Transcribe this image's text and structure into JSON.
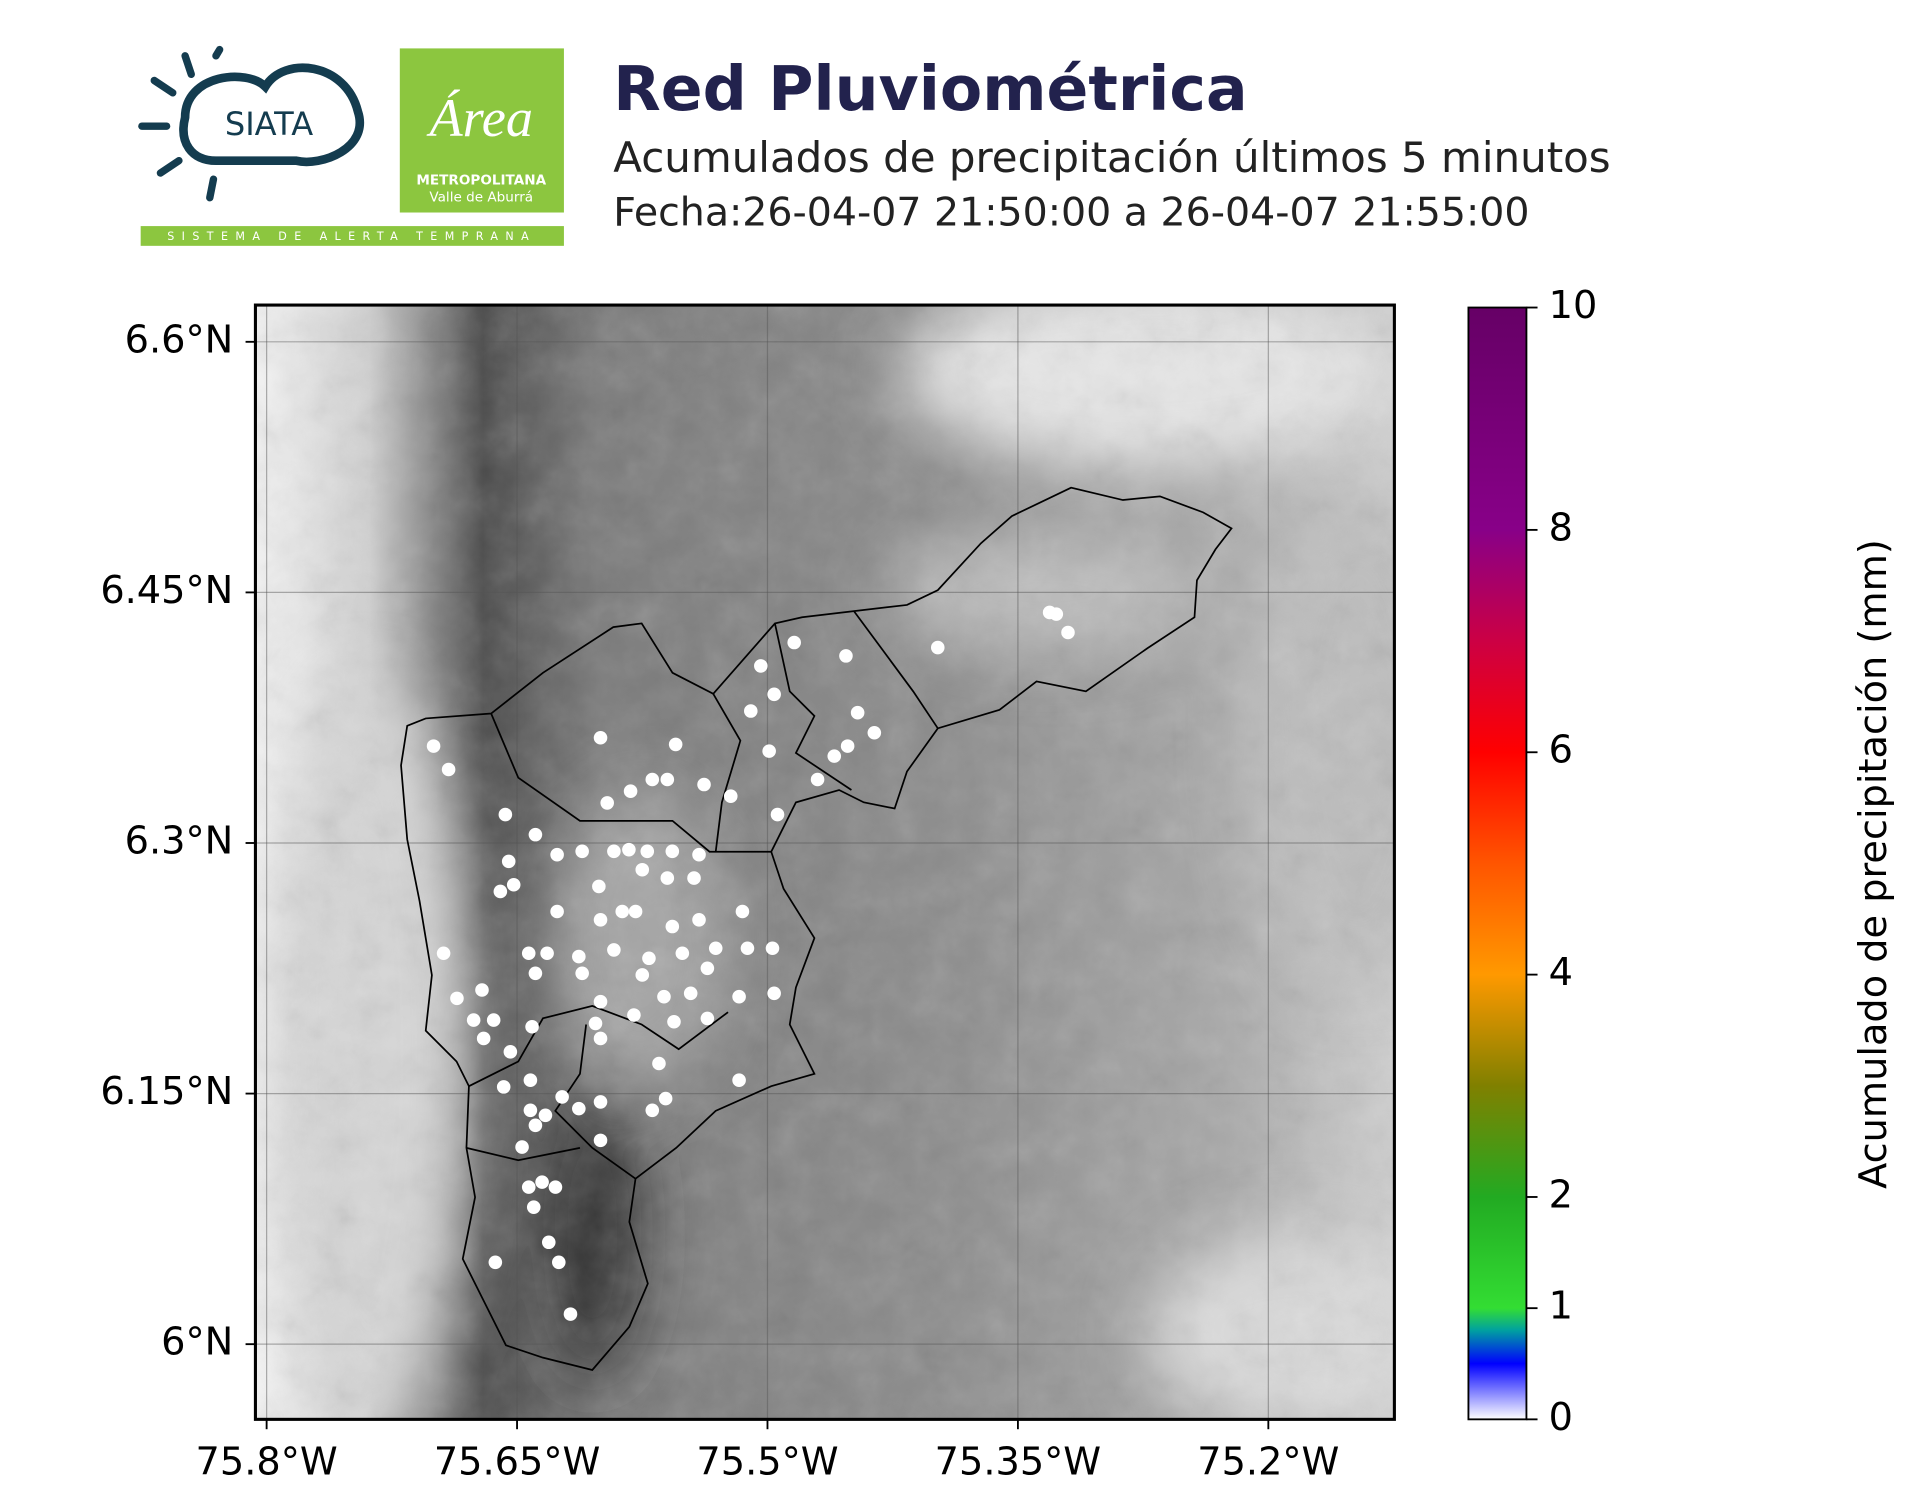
{
  "header": {
    "title": "Red Pluviométrica",
    "subtitle": "Acumulados de precipitación últimos 5 minutos",
    "date": "Fecha:26-04-07 21:50:00 a 26-04-07 21:55:00",
    "logos": {
      "siata": "SIATA",
      "area": "Área",
      "metropolitana": "METROPOLITANA",
      "valle": "Valle de Aburrá",
      "sistema": "SISTEMA DE ALERTA TEMPRANA"
    }
  },
  "chart_data": {
    "type": "scatter",
    "color": "#ffffff",
    "grid": true,
    "xlim": [
      -75.8067,
      -75.1245
    ],
    "ylim": [
      5.955,
      6.622
    ],
    "xticks": [
      {
        "value": -75.8,
        "label": "75.8°W"
      },
      {
        "value": -75.65,
        "label": "75.65°W"
      },
      {
        "value": -75.5,
        "label": "75.5°W"
      },
      {
        "value": -75.35,
        "label": "75.35°W"
      },
      {
        "value": -75.2,
        "label": "75.2°W"
      }
    ],
    "yticks": [
      {
        "value": 6.0,
        "label": "6°N"
      },
      {
        "value": 6.15,
        "label": "6.15°N"
      },
      {
        "value": 6.3,
        "label": "6.3°N"
      },
      {
        "value": 6.45,
        "label": "6.45°N"
      },
      {
        "value": 6.6,
        "label": "6.6°N"
      }
    ],
    "x": [
      -75.7,
      -75.691,
      -75.657,
      -75.639,
      -75.6,
      -75.555,
      -75.611,
      -75.596,
      -75.582,
      -75.569,
      -75.56,
      -75.538,
      -75.522,
      -75.504,
      -75.484,
      -75.496,
      -75.51,
      -75.499,
      -75.494,
      -75.47,
      -75.453,
      -75.446,
      -75.436,
      -75.452,
      -75.46,
      -75.398,
      -75.331,
      -75.327,
      -75.32,
      -75.655,
      -75.66,
      -75.652,
      -75.626,
      -75.592,
      -75.583,
      -75.572,
      -75.557,
      -75.541,
      -75.575,
      -75.56,
      -75.544,
      -75.601,
      -75.626,
      -75.6,
      -75.587,
      -75.579,
      -75.557,
      -75.541,
      -75.515,
      -75.694,
      -75.643,
      -75.632,
      -75.613,
      -75.592,
      -75.571,
      -75.551,
      -75.531,
      -75.512,
      -75.497,
      -75.639,
      -75.611,
      -75.575,
      -75.536,
      -75.671,
      -75.686,
      -75.6,
      -75.562,
      -75.546,
      -75.517,
      -75.496,
      -75.676,
      -75.664,
      -75.641,
      -75.58,
      -75.556,
      -75.536,
      -75.603,
      -75.67,
      -75.654,
      -75.6,
      -75.565,
      -75.658,
      -75.642,
      -75.623,
      -75.613,
      -75.6,
      -75.561,
      -75.569,
      -75.517,
      -75.642,
      -75.639,
      -75.633,
      -75.6,
      -75.647,
      -75.643,
      -75.635,
      -75.627,
      -75.64,
      -75.631,
      -75.625,
      -75.663,
      -75.618
    ],
    "y": [
      6.358,
      6.344,
      6.317,
      6.305,
      6.363,
      6.359,
      6.295,
      6.324,
      6.331,
      6.338,
      6.338,
      6.335,
      6.328,
      6.406,
      6.42,
      6.389,
      6.379,
      6.355,
      6.317,
      6.338,
      6.412,
      6.378,
      6.366,
      6.358,
      6.352,
      6.417,
      6.438,
      6.437,
      6.426,
      6.289,
      6.271,
      6.275,
      6.293,
      6.295,
      6.296,
      6.295,
      6.295,
      6.293,
      6.284,
      6.279,
      6.279,
      6.274,
      6.259,
      6.254,
      6.259,
      6.259,
      6.25,
      6.254,
      6.259,
      6.234,
      6.234,
      6.234,
      6.232,
      6.236,
      6.231,
      6.234,
      6.237,
      6.237,
      6.237,
      6.222,
      6.222,
      6.221,
      6.225,
      6.212,
      6.207,
      6.205,
      6.208,
      6.21,
      6.208,
      6.21,
      6.194,
      6.194,
      6.19,
      6.197,
      6.193,
      6.195,
      6.192,
      6.183,
      6.175,
      6.183,
      6.168,
      6.154,
      6.158,
      6.148,
      6.141,
      6.145,
      6.147,
      6.14,
      6.158,
      6.14,
      6.131,
      6.137,
      6.122,
      6.118,
      6.094,
      6.097,
      6.094,
      6.082,
      6.061,
      6.049,
      6.049,
      6.018
    ],
    "colorbar": {
      "label": "Acumulado de precipitación (mm)",
      "lim": [
        0,
        10
      ],
      "ticks": [
        0,
        1,
        2,
        4,
        6,
        8,
        10
      ],
      "colors": [
        {
          "value": 0,
          "color": "#ffffff"
        },
        {
          "value": 0.5,
          "color": "#0000ff"
        },
        {
          "value": 0.8,
          "color": "#00a0a0"
        },
        {
          "value": 1,
          "color": "#33dd33"
        },
        {
          "value": 2,
          "color": "#22aa22"
        },
        {
          "value": 3,
          "color": "#808000"
        },
        {
          "value": 4,
          "color": "#ff9900"
        },
        {
          "value": 5,
          "color": "#ff5500"
        },
        {
          "value": 6,
          "color": "#ff0000"
        },
        {
          "value": 7,
          "color": "#cc0044"
        },
        {
          "value": 8,
          "color": "#880088"
        },
        {
          "value": 10,
          "color": "#660066"
        }
      ]
    }
  }
}
